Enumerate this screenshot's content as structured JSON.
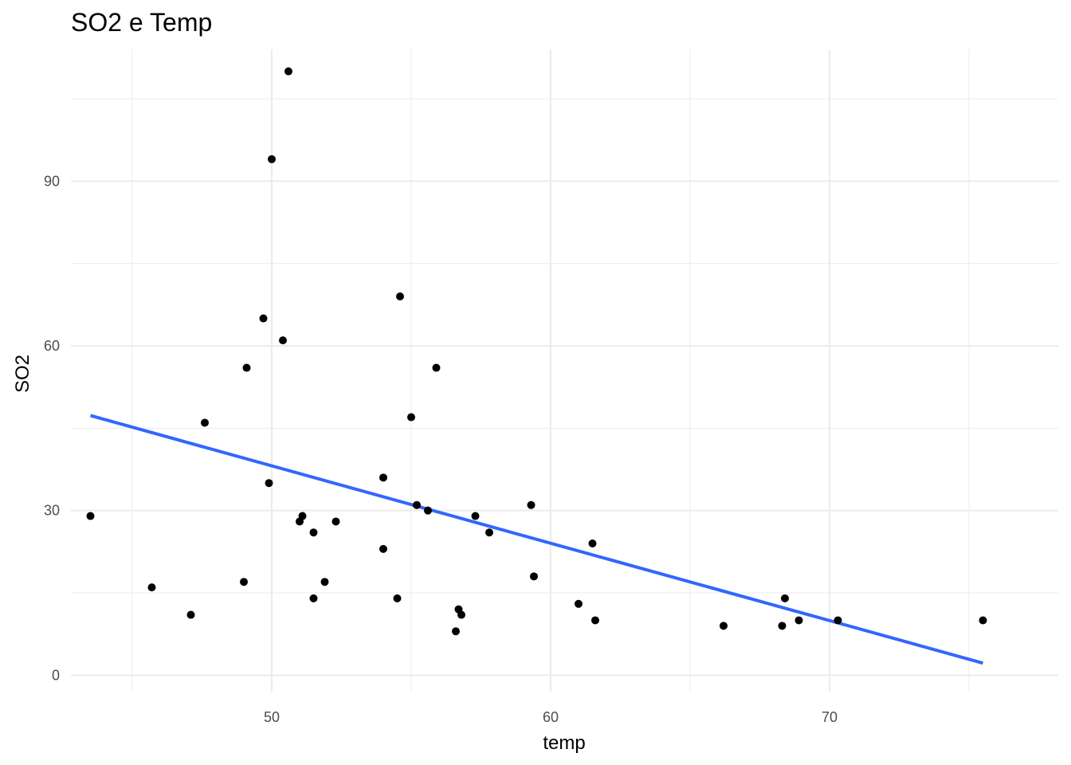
{
  "chart_data": {
    "type": "scatter",
    "title": "SO2 e Temp",
    "xlabel": "temp",
    "ylabel": "SO2",
    "xlim": [
      42.8,
      78.2
    ],
    "ylim": [
      -3,
      114
    ],
    "x_ticks": [
      50,
      60,
      70
    ],
    "y_ticks": [
      0,
      30,
      60,
      90
    ],
    "x_minor": [
      45,
      55,
      65,
      75
    ],
    "y_minor": [
      15,
      45,
      75,
      105
    ],
    "grid": true,
    "legend": "none",
    "colors": {
      "points": "#000000",
      "line": "#3366ff",
      "grid": "#ebebeb"
    },
    "points": [
      {
        "x": 43.5,
        "y": 29
      },
      {
        "x": 45.7,
        "y": 16
      },
      {
        "x": 47.1,
        "y": 11
      },
      {
        "x": 47.6,
        "y": 46
      },
      {
        "x": 49.0,
        "y": 17
      },
      {
        "x": 49.1,
        "y": 56
      },
      {
        "x": 49.7,
        "y": 65
      },
      {
        "x": 49.9,
        "y": 35
      },
      {
        "x": 50.0,
        "y": 94
      },
      {
        "x": 50.4,
        "y": 61
      },
      {
        "x": 50.6,
        "y": 110
      },
      {
        "x": 51.0,
        "y": 28
      },
      {
        "x": 51.1,
        "y": 29
      },
      {
        "x": 51.5,
        "y": 26
      },
      {
        "x": 51.5,
        "y": 14
      },
      {
        "x": 51.9,
        "y": 17
      },
      {
        "x": 52.3,
        "y": 28
      },
      {
        "x": 54.0,
        "y": 36
      },
      {
        "x": 54.0,
        "y": 23
      },
      {
        "x": 54.5,
        "y": 14
      },
      {
        "x": 54.6,
        "y": 69
      },
      {
        "x": 55.0,
        "y": 47
      },
      {
        "x": 55.2,
        "y": 31
      },
      {
        "x": 55.6,
        "y": 30
      },
      {
        "x": 55.9,
        "y": 56
      },
      {
        "x": 56.6,
        "y": 8
      },
      {
        "x": 56.7,
        "y": 12
      },
      {
        "x": 56.8,
        "y": 11
      },
      {
        "x": 57.3,
        "y": 29
      },
      {
        "x": 57.8,
        "y": 26
      },
      {
        "x": 59.3,
        "y": 31
      },
      {
        "x": 59.4,
        "y": 18
      },
      {
        "x": 61.0,
        "y": 13
      },
      {
        "x": 61.5,
        "y": 24
      },
      {
        "x": 61.6,
        "y": 10
      },
      {
        "x": 66.2,
        "y": 9
      },
      {
        "x": 68.3,
        "y": 9
      },
      {
        "x": 68.4,
        "y": 14
      },
      {
        "x": 68.9,
        "y": 10
      },
      {
        "x": 70.3,
        "y": 10
      },
      {
        "x": 75.5,
        "y": 10
      }
    ],
    "fit_line": {
      "x": [
        43.5,
        75.5
      ],
      "y": [
        47.3,
        2.2
      ]
    }
  }
}
